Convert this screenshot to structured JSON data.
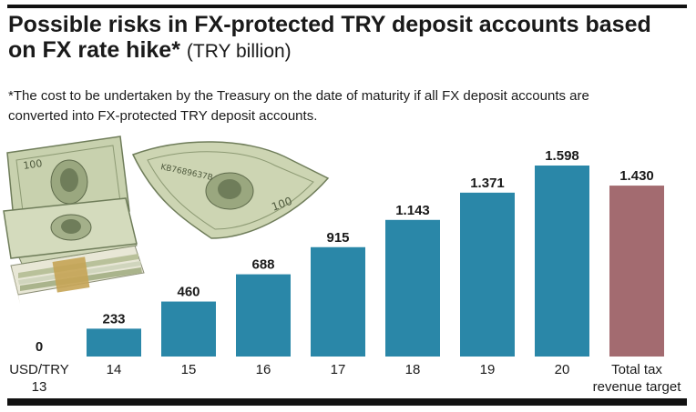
{
  "title": {
    "main": "Possible risks in FX-protected TRY deposit accounts based on FX rate hike*",
    "unit": "(TRY billion)"
  },
  "footnote": "*The cost to be undertaken by the Treasury on the date of maturity if all FX deposit accounts are converted into FX-protected TRY deposit accounts.",
  "colors": {
    "bar": "#2a87a8",
    "target_bar": "#a36b70",
    "bill_green": "#c9d2ae",
    "bill_dark": "#6f7d5a",
    "rule": "#111111"
  },
  "chart_data": {
    "type": "bar",
    "categories": [
      "USD/TRY 13",
      "14",
      "15",
      "16",
      "17",
      "18",
      "19",
      "20",
      "Total tax revenue target"
    ],
    "category_lines": [
      [
        "USD/TRY",
        "13"
      ],
      [
        "14"
      ],
      [
        "15"
      ],
      [
        "16"
      ],
      [
        "17"
      ],
      [
        "18"
      ],
      [
        "19"
      ],
      [
        "20"
      ],
      [
        "Total tax",
        "revenue target"
      ]
    ],
    "values": [
      0,
      233,
      460,
      688,
      915,
      1143,
      1371,
      1598,
      1430
    ],
    "value_labels": [
      "0",
      "233",
      "460",
      "688",
      "915",
      "1.143",
      "1.371",
      "1.598",
      "1.430"
    ],
    "highlight_index": 8,
    "ylim": [
      0,
      1598
    ],
    "xlabel": "",
    "ylabel": "",
    "grid": false,
    "legend": "none"
  }
}
